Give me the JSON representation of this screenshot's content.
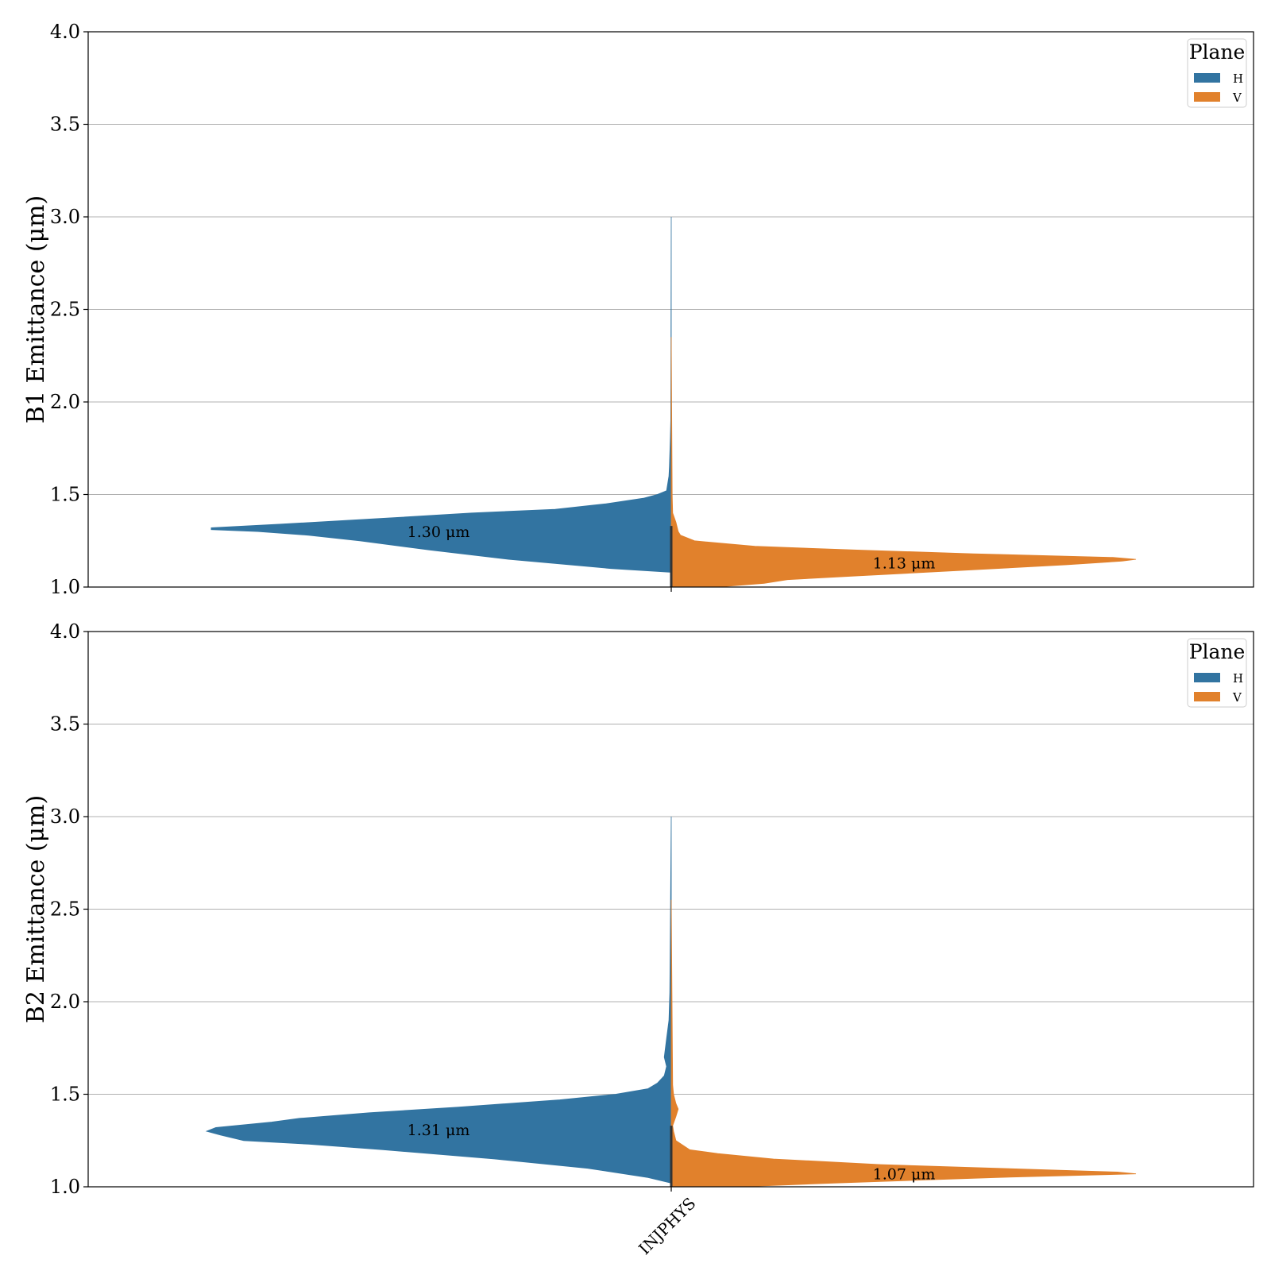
{
  "chart_data": [
    {
      "type": "violin",
      "ylabel": "B1 Emittance (μm)",
      "ylim": [
        1.0,
        4.0
      ],
      "yticks": [
        "1.0",
        "1.5",
        "2.0",
        "2.5",
        "3.0",
        "3.5",
        "4.0"
      ],
      "grid": true,
      "category": "INJPHYS",
      "legend": {
        "title": "Plane",
        "placement": "top-right",
        "entries": [
          {
            "label": "H",
            "color": "#3274a1"
          },
          {
            "label": "V",
            "color": "#e1812c"
          }
        ]
      },
      "series": [
        {
          "name": "H",
          "side": "left",
          "color": "#3274a1",
          "median_label": "1.30 μm",
          "median": 1.3,
          "density": [
            [
              1.08,
              0.0
            ],
            [
              1.1,
              0.13
            ],
            [
              1.15,
              0.35
            ],
            [
              1.2,
              0.52
            ],
            [
              1.25,
              0.67
            ],
            [
              1.28,
              0.78
            ],
            [
              1.3,
              0.89
            ],
            [
              1.31,
              0.99
            ],
            [
              1.32,
              0.99
            ],
            [
              1.34,
              0.84
            ],
            [
              1.37,
              0.63
            ],
            [
              1.4,
              0.43
            ],
            [
              1.42,
              0.25
            ],
            [
              1.45,
              0.14
            ],
            [
              1.48,
              0.06
            ],
            [
              1.5,
              0.03
            ],
            [
              1.52,
              0.01
            ],
            [
              1.6,
              0.005
            ],
            [
              1.65,
              0.004
            ],
            [
              1.8,
              0.002
            ],
            [
              1.9,
              0.001
            ],
            [
              3.0,
              0.0
            ]
          ]
        },
        {
          "name": "V",
          "side": "right",
          "color": "#e1812c",
          "median_label": "1.13 μm",
          "median": 1.13,
          "density": [
            [
              1.0,
              0.0
            ],
            [
              1.0,
              0.1
            ],
            [
              1.02,
              0.2
            ],
            [
              1.04,
              0.25
            ],
            [
              1.06,
              0.4
            ],
            [
              1.08,
              0.55
            ],
            [
              1.1,
              0.7
            ],
            [
              1.12,
              0.85
            ],
            [
              1.14,
              0.97
            ],
            [
              1.15,
              1.0
            ],
            [
              1.16,
              0.95
            ],
            [
              1.18,
              0.65
            ],
            [
              1.2,
              0.4
            ],
            [
              1.22,
              0.18
            ],
            [
              1.25,
              0.05
            ],
            [
              1.28,
              0.02
            ],
            [
              1.3,
              0.015
            ],
            [
              1.35,
              0.01
            ],
            [
              1.4,
              0.003
            ],
            [
              1.5,
              0.002
            ],
            [
              2.35,
              0.0
            ]
          ]
        }
      ]
    },
    {
      "type": "violin",
      "ylabel": "B2 Emittance (μm)",
      "ylim": [
        1.0,
        4.0
      ],
      "yticks": [
        "1.0",
        "1.5",
        "2.0",
        "2.5",
        "3.0",
        "3.5",
        "4.0"
      ],
      "grid": true,
      "category": "INJPHYS",
      "legend": {
        "title": "Plane",
        "placement": "top-right",
        "entries": [
          {
            "label": "H",
            "color": "#3274a1"
          },
          {
            "label": "V",
            "color": "#e1812c"
          }
        ]
      },
      "series": [
        {
          "name": "H",
          "side": "left",
          "color": "#3274a1",
          "median_label": "1.31 μm",
          "median": 1.31,
          "density": [
            [
              1.02,
              0.0
            ],
            [
              1.05,
              0.05
            ],
            [
              1.1,
              0.18
            ],
            [
              1.15,
              0.38
            ],
            [
              1.2,
              0.62
            ],
            [
              1.23,
              0.78
            ],
            [
              1.25,
              0.92
            ],
            [
              1.28,
              0.97
            ],
            [
              1.3,
              1.0
            ],
            [
              1.32,
              0.98
            ],
            [
              1.35,
              0.86
            ],
            [
              1.37,
              0.8
            ],
            [
              1.4,
              0.65
            ],
            [
              1.43,
              0.46
            ],
            [
              1.47,
              0.24
            ],
            [
              1.5,
              0.12
            ],
            [
              1.53,
              0.05
            ],
            [
              1.56,
              0.03
            ],
            [
              1.6,
              0.015
            ],
            [
              1.65,
              0.01
            ],
            [
              1.7,
              0.015
            ],
            [
              1.8,
              0.01
            ],
            [
              1.9,
              0.005
            ],
            [
              2.05,
              0.003
            ],
            [
              3.0,
              0.0
            ]
          ]
        },
        {
          "name": "V",
          "side": "right",
          "color": "#e1812c",
          "median_label": "1.07 μm",
          "median": 1.07,
          "density": [
            [
              1.0,
              0.0
            ],
            [
              1.0,
              0.15
            ],
            [
              1.02,
              0.35
            ],
            [
              1.05,
              0.7
            ],
            [
              1.07,
              1.0
            ],
            [
              1.08,
              0.96
            ],
            [
              1.1,
              0.7
            ],
            [
              1.12,
              0.45
            ],
            [
              1.15,
              0.22
            ],
            [
              1.18,
              0.1
            ],
            [
              1.2,
              0.04
            ],
            [
              1.25,
              0.01
            ],
            [
              1.3,
              0.005
            ],
            [
              1.33,
              0.003
            ],
            [
              1.38,
              0.01
            ],
            [
              1.42,
              0.015
            ],
            [
              1.45,
              0.01
            ],
            [
              1.5,
              0.005
            ],
            [
              1.55,
              0.003
            ],
            [
              2.55,
              0.0
            ]
          ]
        }
      ]
    }
  ]
}
